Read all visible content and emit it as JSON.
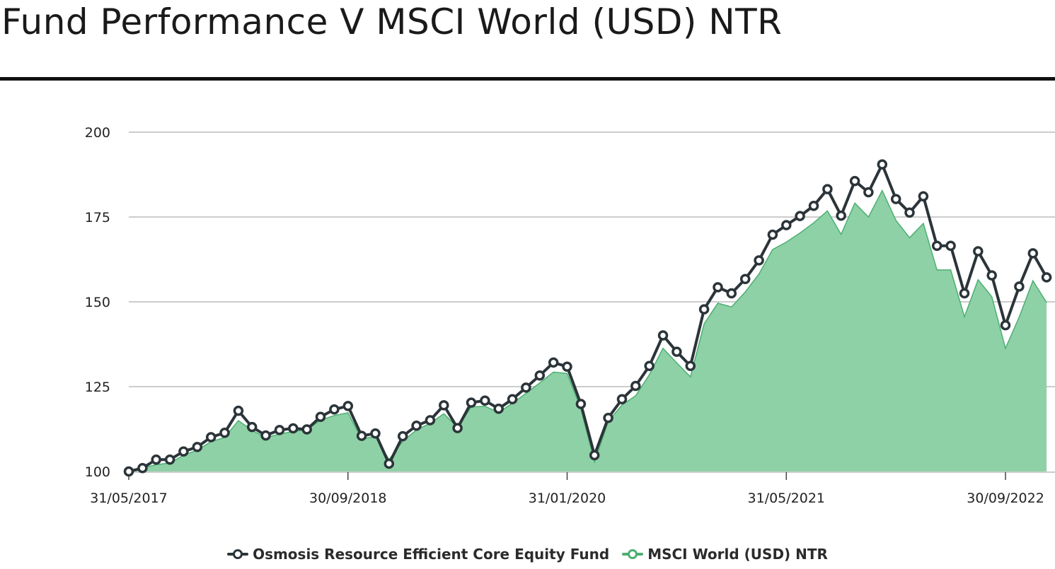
{
  "page": {
    "title": "Fund Performance V MSCI World (USD) NTR"
  },
  "colors": {
    "fund": "#2b3439",
    "index_fill": "#8ed1a6",
    "index_line": "#4caf72",
    "grid": "#cccccc"
  },
  "chart_data": {
    "type": "line",
    "title": "Fund Performance V MSCI World (USD) NTR",
    "xlabel": "",
    "ylabel": "",
    "ylim": [
      100,
      200
    ],
    "yticks": [
      100,
      125,
      150,
      175,
      200
    ],
    "xticks": [
      "31/05/2017",
      "30/09/2018",
      "31/01/2020",
      "31/05/2021",
      "30/09/2022"
    ],
    "x_start": "31/05/2017",
    "x_end": "31/12/2022",
    "frequency": "monthly",
    "grid": true,
    "legend_position": "bottom",
    "series": [
      {
        "name": "Osmosis Resource Efficient Core Equity Fund",
        "style": "line-with-markers",
        "values": [
          100,
          101,
          103.5,
          103.5,
          105.9,
          107.2,
          110.1,
          111.4,
          117.9,
          113.1,
          110.6,
          112.2,
          112.7,
          112.4,
          116.1,
          118.3,
          119.3,
          110.5,
          111.2,
          102.3,
          110.4,
          113.5,
          115.1,
          119.5,
          112.8,
          120.3,
          120.9,
          118.5,
          121.3,
          124.7,
          128.3,
          132.1,
          130.9,
          119.9,
          104.8,
          115.8,
          121.3,
          125.2,
          131.1,
          140.1,
          135.3,
          131.1,
          147.8,
          154.3,
          152.5,
          156.7,
          162.2,
          169.8,
          172.6,
          175.3,
          178.3,
          183.2,
          175.4,
          185.6,
          182.3,
          190.5,
          180.3,
          176.3,
          181.1,
          166.5,
          166.5,
          152.5,
          164.9,
          157.8,
          143.1,
          154.5,
          164.3,
          157.2
        ]
      },
      {
        "name": "MSCI World (USD) NTR",
        "style": "filled-area",
        "values": [
          100,
          101,
          102,
          102.5,
          104.8,
          106.3,
          108.8,
          110,
          115,
          112.1,
          110,
          111,
          111.8,
          112.3,
          115.1,
          116.5,
          117.3,
          109.6,
          110.3,
          103.5,
          108.9,
          112.2,
          114.2,
          117,
          113,
          119,
          119.2,
          117.4,
          120.1,
          123,
          126.1,
          129.3,
          128.9,
          118.5,
          102.8,
          114.7,
          119.6,
          122.3,
          128.5,
          136.3,
          132,
          127.9,
          143.5,
          149.6,
          148.5,
          152.9,
          158.2,
          165.4,
          167.6,
          170.3,
          173.3,
          176.8,
          169.9,
          179.1,
          175,
          182.8,
          174,
          168.9,
          173.1,
          159.4,
          159.4,
          145.6,
          156.5,
          151.5,
          136.3,
          145.5,
          156.2,
          149.8
        ]
      }
    ]
  },
  "legend": {
    "fund": "Osmosis Resource Efficient Core Equity Fund",
    "index": "MSCI World (USD) NTR"
  }
}
